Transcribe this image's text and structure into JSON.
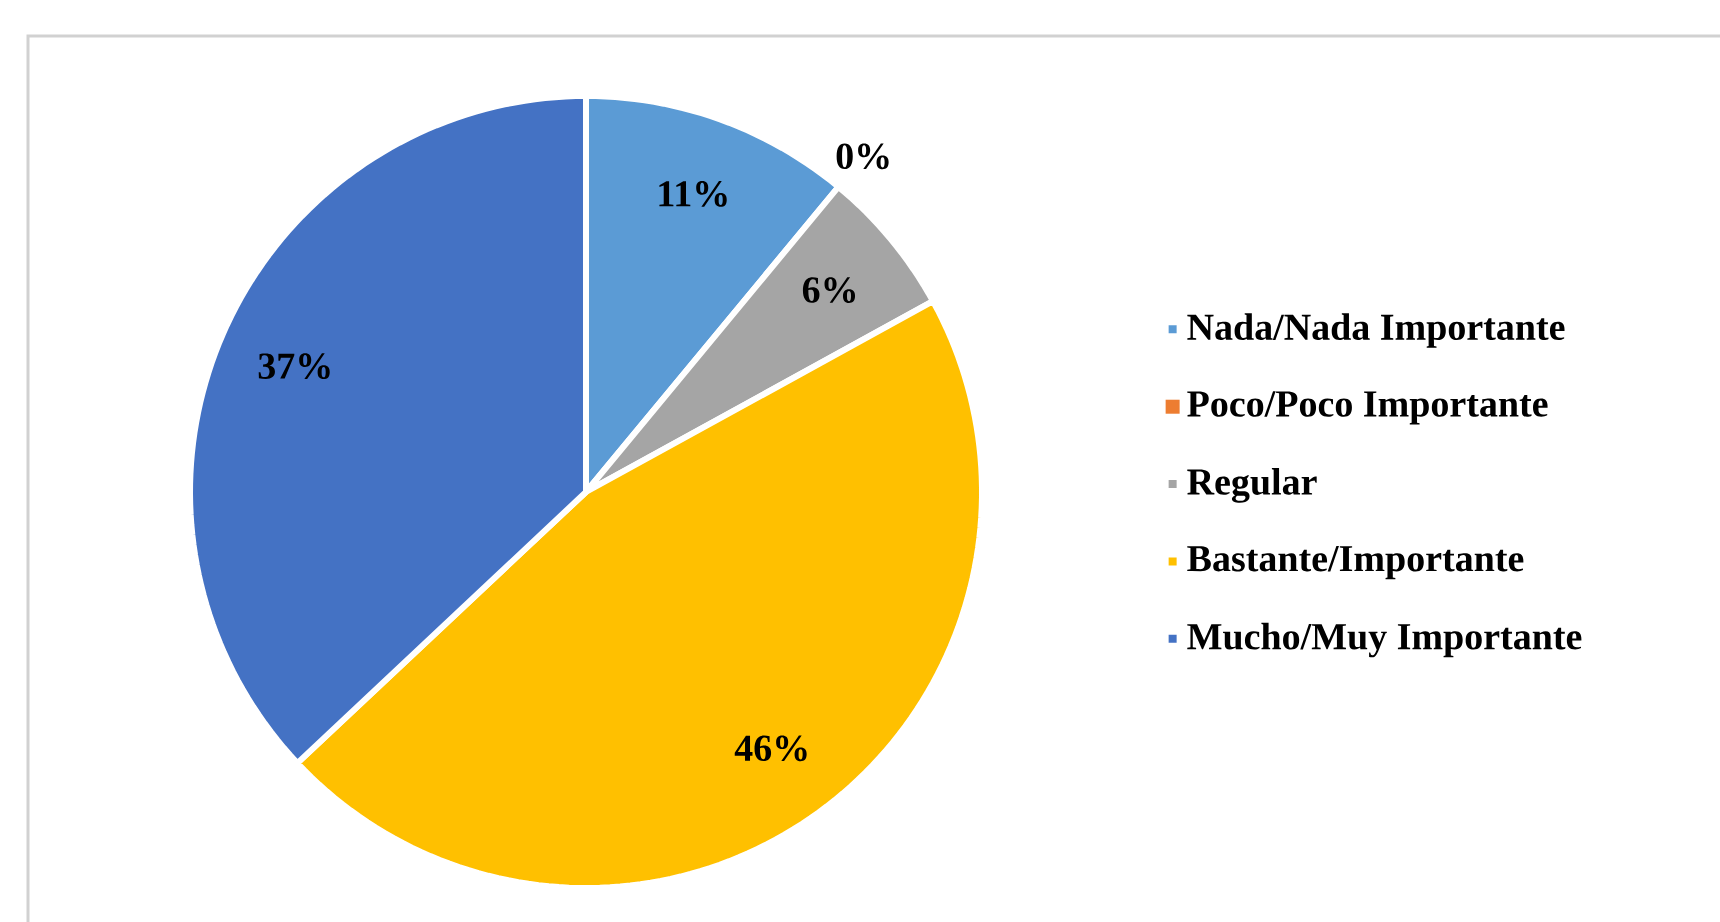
{
  "chart_data": {
    "type": "pie",
    "categories": [
      "Nada/Nada Importante",
      "Poco/Poco Importante",
      "Regular",
      "Bastante/Importante",
      "Mucho/Muy Importante"
    ],
    "values": [
      11,
      0,
      6,
      46,
      37
    ],
    "value_labels": [
      "11%",
      "0%",
      "6%",
      "46%",
      "37%"
    ],
    "colors": [
      "#5b9bd5",
      "#ed7d31",
      "#a5a5a5",
      "#ffc000",
      "#4472c4"
    ],
    "legend": "right"
  }
}
